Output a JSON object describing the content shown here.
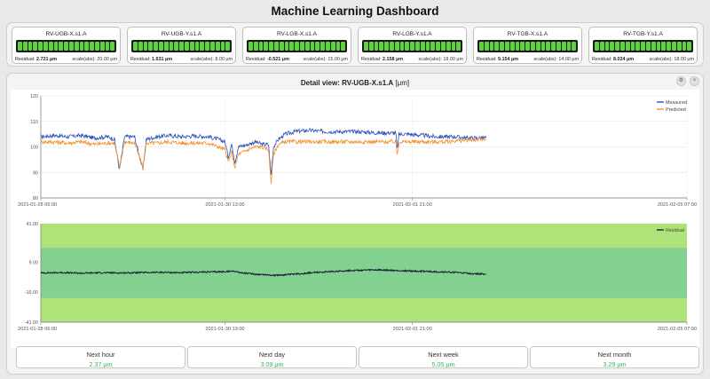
{
  "dashboard_title": "Machine Learning Dashboard",
  "segments_per_card": 19,
  "cards": [
    {
      "name": "RV-UGB-X.s1.A",
      "residual_label": "Residual:",
      "residual_value": "2.721 μm",
      "scale": "scale(abs): 20.00 μm",
      "level": 1.0
    },
    {
      "name": "RV-UGB-Y.s1.A",
      "residual_label": "Residual:",
      "residual_value": "1.631 μm",
      "scale": "scale(abs): 8.00 μm",
      "level": 1.0
    },
    {
      "name": "RV-LGB-X.s1.A",
      "residual_label": "Residual:",
      "residual_value": "-0.521 μm",
      "scale": "scale(abs): 15.00 μm",
      "level": 1.0
    },
    {
      "name": "RV-LGB-Y.s1.A",
      "residual_label": "Residual:",
      "residual_value": "2.158 μm",
      "scale": "scale(abs): 18.00 μm",
      "level": 1.0
    },
    {
      "name": "RV-TGB-X.s1.A",
      "residual_label": "Residual:",
      "residual_value": "9.154 μm",
      "scale": "scale(abs): 14.00 μm",
      "level": 1.0
    },
    {
      "name": "RV-TGB-Y.s1.A",
      "residual_label": "Residual:",
      "residual_value": "8.024 μm",
      "scale": "scale(abs): 18.00 μm",
      "level": 1.0
    }
  ],
  "detail": {
    "title_prefix": "Detail view:",
    "title_sensor": "RV-UGB-X.s1.A",
    "title_unit": "[μm]",
    "settings_icon": "gear-icon",
    "close_icon": "close-icon",
    "settings_glyph": "⚙",
    "close_glyph": "×"
  },
  "chart_data": [
    {
      "type": "line",
      "x_range": [
        "2021-01-28 06:00",
        "2021-02-05 07:00"
      ],
      "x_ticks": [
        "2021-01-28 06:00",
        "2021-01-30 13:00",
        "2021-02-01 21:00",
        "2021-02-05 07:00"
      ],
      "ylim": [
        80,
        120
      ],
      "y_ticks": [
        80,
        90,
        100,
        110,
        120
      ],
      "grid": true,
      "legend": "top-right",
      "series": [
        {
          "name": "Measured",
          "color": "#2a4fb8",
          "points": [
            [
              0,
              104
            ],
            [
              4,
              104.5
            ],
            [
              8,
              104
            ],
            [
              12,
              104.5
            ],
            [
              16,
              103.5
            ],
            [
              20,
              104
            ],
            [
              22,
              103
            ],
            [
              23.5,
              91
            ],
            [
              25,
              104
            ],
            [
              28,
              104
            ],
            [
              30.5,
              91
            ],
            [
              31.5,
              103
            ],
            [
              35,
              104
            ],
            [
              38,
              104.5
            ],
            [
              42,
              104
            ],
            [
              46,
              104.3
            ],
            [
              50,
              104
            ],
            [
              53,
              103
            ],
            [
              55,
              102
            ],
            [
              56,
              96
            ],
            [
              57,
              101
            ],
            [
              58,
              94
            ],
            [
              59,
              100
            ],
            [
              62,
              101
            ],
            [
              64,
              102
            ],
            [
              66,
              101
            ],
            [
              68,
              101
            ],
            [
              68.8,
              89
            ],
            [
              69.5,
              100
            ],
            [
              71,
              103
            ],
            [
              73,
              105
            ],
            [
              76,
              106
            ],
            [
              80,
              106.5
            ],
            [
              85,
              106
            ],
            [
              90,
              106
            ],
            [
              95,
              106
            ],
            [
              100,
              105.5
            ],
            [
              104,
              105.5
            ],
            [
              106,
              105.5
            ],
            [
              106.5,
              99
            ],
            [
              107,
              105
            ],
            [
              110,
              105
            ],
            [
              114,
              104.5
            ],
            [
              118,
              104
            ],
            [
              122,
              104
            ],
            [
              124,
              104
            ],
            [
              127,
              103.5
            ],
            [
              131,
              103.5
            ],
            [
              133,
              103.5
            ]
          ]
        },
        {
          "name": "Predicted",
          "color": "#f0922e",
          "points": [
            [
              0,
              102
            ],
            [
              4,
              102
            ],
            [
              8,
              101.5
            ],
            [
              12,
              102
            ],
            [
              16,
              101
            ],
            [
              20,
              101.5
            ],
            [
              22,
              101.5
            ],
            [
              23.5,
              92
            ],
            [
              25,
              102
            ],
            [
              28,
              101.5
            ],
            [
              30.5,
              92
            ],
            [
              31.5,
              101.5
            ],
            [
              35,
              101.5
            ],
            [
              38,
              102
            ],
            [
              42,
              101.5
            ],
            [
              46,
              101.5
            ],
            [
              50,
              101.5
            ],
            [
              53,
              100
            ],
            [
              55,
              99
            ],
            [
              56,
              94
            ],
            [
              57,
              98
            ],
            [
              58,
              92
            ],
            [
              59,
              97
            ],
            [
              62,
              99
            ],
            [
              64,
              100
            ],
            [
              66,
              100
            ],
            [
              68,
              99
            ],
            [
              68.8,
              86
            ],
            [
              69.5,
              97
            ],
            [
              71,
              101
            ],
            [
              73,
              102
            ],
            [
              76,
              102
            ],
            [
              80,
              102
            ],
            [
              85,
              102
            ],
            [
              90,
              102
            ],
            [
              95,
              102
            ],
            [
              100,
              102
            ],
            [
              104,
              102
            ],
            [
              106,
              102
            ],
            [
              106.5,
              97
            ],
            [
              107,
              102
            ],
            [
              110,
              102
            ],
            [
              114,
              102
            ],
            [
              118,
              102
            ],
            [
              122,
              102
            ],
            [
              124,
              102.5
            ],
            [
              127,
              102.5
            ],
            [
              131,
              103
            ],
            [
              133,
              103
            ]
          ]
        }
      ]
    },
    {
      "type": "line",
      "x_range": [
        "2021-01-28 06:00",
        "2021-02-05 07:00"
      ],
      "x_ticks": [
        "2021-01-28 06:00",
        "2021-01-30 13:00",
        "2021-02-01 21:00",
        "2021-02-05 07:00"
      ],
      "ylim": [
        -41,
        41
      ],
      "y_ticks": [
        "-41.00",
        "-16.00",
        "9.00",
        "41.00"
      ],
      "bands": [
        {
          "from": -41,
          "to": -21,
          "color": "#b0e27a"
        },
        {
          "from": -21,
          "to": 21,
          "color": "#82d191"
        },
        {
          "from": 21,
          "to": 41,
          "color": "#b0e27a"
        }
      ],
      "legend": "top-right",
      "series": [
        {
          "name": "Residual",
          "color": "#1f1f3a",
          "points": [
            [
              0,
              0
            ],
            [
              6,
              0.3
            ],
            [
              12,
              -0.2
            ],
            [
              18,
              0.2
            ],
            [
              24,
              0
            ],
            [
              30,
              0.3
            ],
            [
              36,
              0.5
            ],
            [
              42,
              0.2
            ],
            [
              48,
              0.7
            ],
            [
              54,
              1
            ],
            [
              58,
              1.5
            ],
            [
              60,
              0
            ],
            [
              64,
              -1
            ],
            [
              70,
              -2
            ],
            [
              76,
              -1
            ],
            [
              80,
              0
            ],
            [
              86,
              1
            ],
            [
              92,
              2
            ],
            [
              100,
              2.5
            ],
            [
              106,
              2
            ],
            [
              112,
              1.5
            ],
            [
              118,
              1
            ],
            [
              124,
              0.5
            ],
            [
              128,
              -0.5
            ],
            [
              133,
              -1
            ]
          ]
        }
      ]
    }
  ],
  "stats": [
    {
      "label": "Next hour",
      "value": "2.37 μm"
    },
    {
      "label": "Next day",
      "value": "3.09 μm"
    },
    {
      "label": "Next week",
      "value": "5.05 μm"
    },
    {
      "label": "Next month",
      "value": "3.29 μm"
    }
  ]
}
